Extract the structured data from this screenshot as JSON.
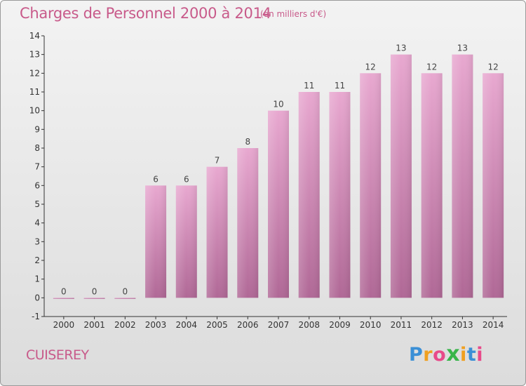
{
  "header": {
    "title": "Charges de Personnel 2000 à 2014",
    "unit_note": "(en milliers d'€)"
  },
  "footer": {
    "commune": "CUISEREY",
    "logo_letters": [
      "P",
      "r",
      "o",
      "x",
      "i",
      "t",
      "i"
    ],
    "logo_colors": [
      "#3a8fd6",
      "#f0a020",
      "#e84a8a",
      "#38b54a",
      "#f0a020",
      "#3a8fd6",
      "#e84a8a"
    ]
  },
  "chart_data": {
    "type": "bar",
    "categories": [
      "2000",
      "2001",
      "2002",
      "2003",
      "2004",
      "2005",
      "2006",
      "2007",
      "2008",
      "2009",
      "2010",
      "2011",
      "2012",
      "2013",
      "2014"
    ],
    "values": [
      0,
      0,
      0,
      6,
      6,
      7,
      8,
      10,
      11,
      11,
      12,
      13,
      12,
      13,
      12
    ],
    "value_labels": [
      "0",
      "0",
      "0",
      "6",
      "6",
      "7",
      "8",
      "10",
      "11",
      "11",
      "12",
      "13",
      "12",
      "13",
      "12"
    ],
    "yticks": [
      "-1",
      "0",
      "1",
      "2",
      "3",
      "4",
      "5",
      "6",
      "7",
      "8",
      "9",
      "10",
      "11",
      "12",
      "13",
      "14"
    ],
    "ylim": [
      -1,
      14
    ],
    "bar_color": "#d98ab8",
    "bar_color_dark": "#b06896",
    "grid": false
  }
}
